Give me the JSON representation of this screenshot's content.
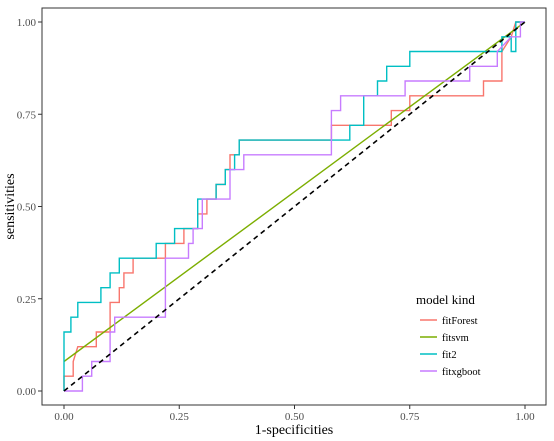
{
  "chart_data": {
    "type": "line",
    "xlabel": "1-specificities",
    "ylabel": "sensitivities",
    "xlim": [
      0,
      1
    ],
    "ylim": [
      0,
      1
    ],
    "x_ticks": [
      "0.00",
      "0.25",
      "0.50",
      "0.75",
      "1.00"
    ],
    "y_ticks": [
      "0.00",
      "0.25",
      "0.50",
      "0.75",
      "1.00"
    ],
    "grid": false,
    "legend": {
      "title": "model kind",
      "placement": "bottom-right"
    },
    "series": [
      {
        "name": "fitForest",
        "color": "#F8766D",
        "points": [
          [
            0,
            0
          ],
          [
            0,
            0.04
          ],
          [
            0.02,
            0.04
          ],
          [
            0.02,
            0.08
          ],
          [
            0.03,
            0.12
          ],
          [
            0.07,
            0.12
          ],
          [
            0.07,
            0.16
          ],
          [
            0.1,
            0.16
          ],
          [
            0.1,
            0.24
          ],
          [
            0.12,
            0.24
          ],
          [
            0.12,
            0.28
          ],
          [
            0.13,
            0.28
          ],
          [
            0.13,
            0.32
          ],
          [
            0.15,
            0.32
          ],
          [
            0.15,
            0.36
          ],
          [
            0.22,
            0.36
          ],
          [
            0.22,
            0.4
          ],
          [
            0.26,
            0.4
          ],
          [
            0.26,
            0.44
          ],
          [
            0.29,
            0.44
          ],
          [
            0.29,
            0.48
          ],
          [
            0.31,
            0.48
          ],
          [
            0.31,
            0.52
          ],
          [
            0.33,
            0.52
          ],
          [
            0.33,
            0.56
          ],
          [
            0.35,
            0.56
          ],
          [
            0.35,
            0.6
          ],
          [
            0.36,
            0.6
          ],
          [
            0.36,
            0.64
          ],
          [
            0.38,
            0.64
          ],
          [
            0.38,
            0.68
          ],
          [
            0.58,
            0.68
          ],
          [
            0.58,
            0.72
          ],
          [
            0.71,
            0.72
          ],
          [
            0.71,
            0.76
          ],
          [
            0.75,
            0.76
          ],
          [
            0.75,
            0.8
          ],
          [
            0.91,
            0.8
          ],
          [
            0.91,
            0.84
          ],
          [
            0.95,
            0.84
          ],
          [
            0.95,
            0.92
          ],
          [
            0.97,
            0.96
          ],
          [
            0.98,
            1
          ],
          [
            1,
            1
          ]
        ]
      },
      {
        "name": "fitsvm",
        "color": "#7CAE00",
        "points": [
          [
            0,
            0.08
          ],
          [
            1,
            1
          ]
        ]
      },
      {
        "name": "fit2",
        "color": "#00BFC4",
        "points": [
          [
            0,
            0
          ],
          [
            0,
            0.16
          ],
          [
            0.015,
            0.16
          ],
          [
            0.015,
            0.2
          ],
          [
            0.03,
            0.2
          ],
          [
            0.03,
            0.24
          ],
          [
            0.08,
            0.24
          ],
          [
            0.08,
            0.28
          ],
          [
            0.1,
            0.28
          ],
          [
            0.1,
            0.32
          ],
          [
            0.12,
            0.32
          ],
          [
            0.12,
            0.36
          ],
          [
            0.2,
            0.36
          ],
          [
            0.2,
            0.4
          ],
          [
            0.24,
            0.4
          ],
          [
            0.24,
            0.44
          ],
          [
            0.29,
            0.44
          ],
          [
            0.29,
            0.52
          ],
          [
            0.33,
            0.52
          ],
          [
            0.33,
            0.56
          ],
          [
            0.35,
            0.56
          ],
          [
            0.35,
            0.6
          ],
          [
            0.37,
            0.6
          ],
          [
            0.37,
            0.64
          ],
          [
            0.38,
            0.64
          ],
          [
            0.38,
            0.68
          ],
          [
            0.62,
            0.68
          ],
          [
            0.62,
            0.72
          ],
          [
            0.65,
            0.72
          ],
          [
            0.65,
            0.8
          ],
          [
            0.68,
            0.8
          ],
          [
            0.68,
            0.84
          ],
          [
            0.7,
            0.84
          ],
          [
            0.7,
            0.88
          ],
          [
            0.75,
            0.88
          ],
          [
            0.75,
            0.92
          ],
          [
            0.95,
            0.92
          ],
          [
            0.95,
            0.96
          ],
          [
            0.97,
            0.96
          ],
          [
            0.97,
            0.92
          ],
          [
            0.98,
            0.92
          ],
          [
            0.98,
            1
          ],
          [
            1,
            1
          ]
        ]
      },
      {
        "name": "fitxgboot",
        "color": "#C77CFF",
        "points": [
          [
            0,
            0
          ],
          [
            0.04,
            0
          ],
          [
            0.04,
            0.04
          ],
          [
            0.06,
            0.04
          ],
          [
            0.06,
            0.08
          ],
          [
            0.1,
            0.08
          ],
          [
            0.1,
            0.16
          ],
          [
            0.11,
            0.16
          ],
          [
            0.11,
            0.2
          ],
          [
            0.22,
            0.2
          ],
          [
            0.22,
            0.36
          ],
          [
            0.27,
            0.36
          ],
          [
            0.27,
            0.4
          ],
          [
            0.28,
            0.4
          ],
          [
            0.28,
            0.44
          ],
          [
            0.3,
            0.44
          ],
          [
            0.3,
            0.52
          ],
          [
            0.36,
            0.52
          ],
          [
            0.36,
            0.6
          ],
          [
            0.39,
            0.6
          ],
          [
            0.39,
            0.64
          ],
          [
            0.58,
            0.64
          ],
          [
            0.58,
            0.76
          ],
          [
            0.6,
            0.76
          ],
          [
            0.6,
            0.8
          ],
          [
            0.74,
            0.8
          ],
          [
            0.74,
            0.84
          ],
          [
            0.88,
            0.84
          ],
          [
            0.88,
            0.88
          ],
          [
            0.94,
            0.88
          ],
          [
            0.94,
            0.92
          ],
          [
            0.97,
            0.96
          ],
          [
            0.99,
            0.96
          ],
          [
            0.99,
            1
          ],
          [
            1,
            1
          ]
        ]
      }
    ],
    "reference_line": {
      "style": "dashed",
      "color": "#000000",
      "points": [
        [
          0,
          0
        ],
        [
          1,
          1
        ]
      ]
    }
  }
}
